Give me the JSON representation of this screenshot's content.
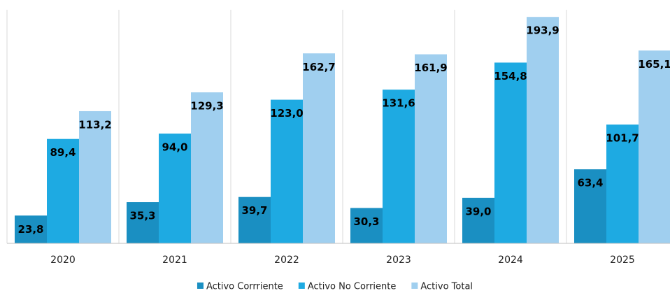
{
  "chart_data": {
    "type": "bar",
    "categories": [
      "2020",
      "2021",
      "2022",
      "2023",
      "2024",
      "2025"
    ],
    "series": [
      {
        "name": "Activo Corrriente",
        "color": "#1a8fc2",
        "values": [
          23.8,
          35.3,
          39.7,
          30.3,
          39.0,
          63.4
        ],
        "value_labels": [
          "23,8",
          "35,3",
          "39,7",
          "30,3",
          "39,0",
          "63,4"
        ]
      },
      {
        "name": "Activo No Corriente",
        "color": "#1eaae2",
        "values": [
          89.4,
          94.0,
          123.0,
          131.6,
          154.8,
          101.7
        ],
        "value_labels": [
          "89,4",
          "94,0",
          "123,0",
          "131,6",
          "154,8",
          "101,7"
        ]
      },
      {
        "name": "Activo Total",
        "color": "#a0cfef",
        "values": [
          113.2,
          129.3,
          162.7,
          161.9,
          193.9,
          165.1
        ],
        "value_labels": [
          "113,2",
          "129,3",
          "162,7",
          "161,9",
          "193,9",
          "165,1"
        ]
      }
    ],
    "ylim": [
      0,
      200
    ]
  }
}
